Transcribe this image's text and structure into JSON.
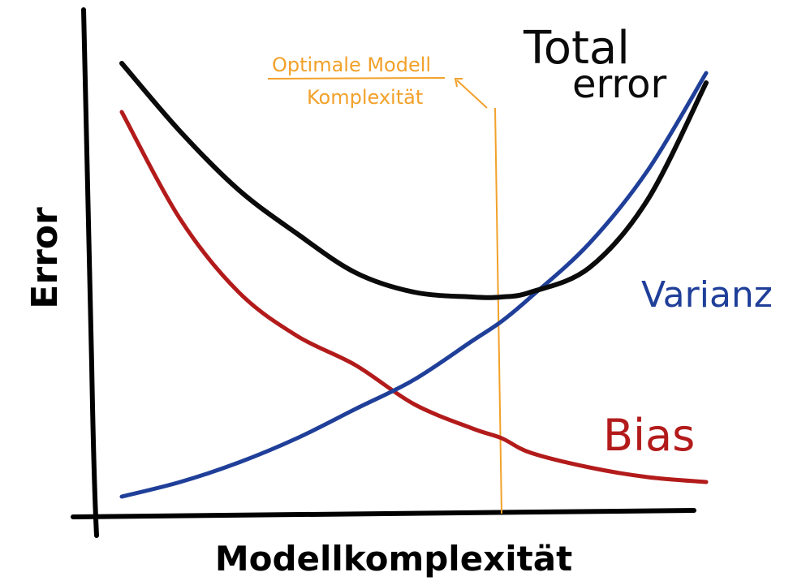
{
  "chart_data": {
    "type": "line",
    "title": "",
    "xlabel": "Modellkomplexität",
    "ylabel": "Error",
    "grid": false,
    "series": [
      {
        "name": "Total error",
        "color": "#0b0b0b",
        "x": [
          0,
          0.1,
          0.2,
          0.3,
          0.4,
          0.5,
          0.6,
          0.65,
          0.7,
          0.8,
          0.9,
          1.0
        ],
        "y": [
          0.92,
          0.78,
          0.66,
          0.57,
          0.49,
          0.45,
          0.44,
          0.44,
          0.45,
          0.5,
          0.64,
          0.88
        ]
      },
      {
        "name": "Varianz",
        "color": "#1f3f99",
        "x": [
          0,
          0.1,
          0.2,
          0.3,
          0.4,
          0.5,
          0.6,
          0.65,
          0.7,
          0.8,
          0.9,
          1.0
        ],
        "y": [
          0.03,
          0.06,
          0.1,
          0.15,
          0.21,
          0.27,
          0.35,
          0.39,
          0.44,
          0.55,
          0.7,
          0.9
        ]
      },
      {
        "name": "Bias",
        "color": "#b31b1b",
        "x": [
          0,
          0.1,
          0.2,
          0.3,
          0.4,
          0.5,
          0.6,
          0.65,
          0.7,
          0.8,
          0.9,
          1.0
        ],
        "y": [
          0.82,
          0.6,
          0.45,
          0.36,
          0.3,
          0.22,
          0.17,
          0.15,
          0.12,
          0.09,
          0.07,
          0.06
        ]
      }
    ],
    "annotations": [
      {
        "text_line1": "Optimale Modell",
        "text_line2": "Komplexität",
        "color": "#f2a12a",
        "x": 0.65
      }
    ]
  },
  "labels": {
    "total_line1": "Total",
    "total_line2": "error",
    "varianz": "Varianz",
    "bias": "Bias"
  }
}
